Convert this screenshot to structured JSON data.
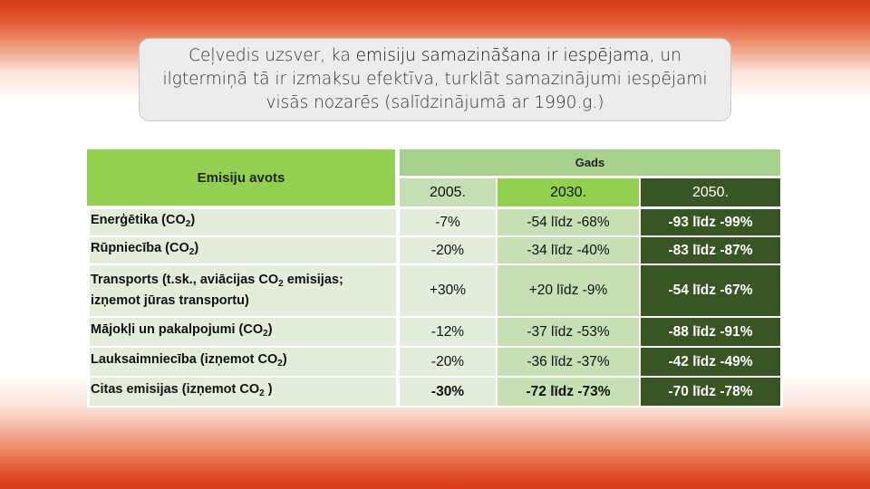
{
  "callout": {
    "part1": "Ceļvedis uzsver, ka ",
    "highlight": "emisiju samazināšana ir iespējama",
    "part2": ", un ilgtermiņā tā ir izmaksu efektīva, turklāt samazinājumi iespējami visās nozarēs (salīdzinājumā ar 1990.g.)"
  },
  "table": {
    "source_header": "Emisiju avots",
    "year_group_header": "Gads",
    "years": [
      "2005.",
      "2030.",
      "2050."
    ],
    "rows": [
      {
        "label_pre": "Enerģētika (CO",
        "label_sub": "2",
        "label_post": ")",
        "v2005": "-7%",
        "v2030": "-54 līdz -68%",
        "v2050": "-93 līdz -99%"
      },
      {
        "label_pre": "Rūpniecība (CO",
        "label_sub": "2",
        "label_post": ")",
        "v2005": "-20%",
        "v2030": "-34 līdz -40%",
        "v2050": "-83 līdz -87%"
      },
      {
        "label_pre": "Transports (t.sk., aviācijas CO",
        "label_sub": "2",
        "label_post": " emisijas; izņemot jūras transportu)",
        "v2005": "+30%",
        "v2030": "+20 līdz -9%",
        "v2050": "-54 līdz -67%"
      },
      {
        "label_pre": "Mājokļi un pakalpojumi (CO",
        "label_sub": "2",
        "label_post": ")",
        "v2005": "-12%",
        "v2030": "-37 līdz -53%",
        "v2050": "-88 līdz -91%"
      },
      {
        "label_pre": "Lauksaimniecība (izņemot CO",
        "label_sub": "2",
        "label_post": ")",
        "v2005": "-20%",
        "v2030": "-36 līdz -37%",
        "v2050": "-42 līdz -49%"
      },
      {
        "label_pre": "Citas emisijas (izņemot CO",
        "label_sub": "2",
        "label_post": " )",
        "v2005": "-30%",
        "v2030": "-72 līdz -73%",
        "v2050": "-70 līdz -78%"
      }
    ]
  }
}
